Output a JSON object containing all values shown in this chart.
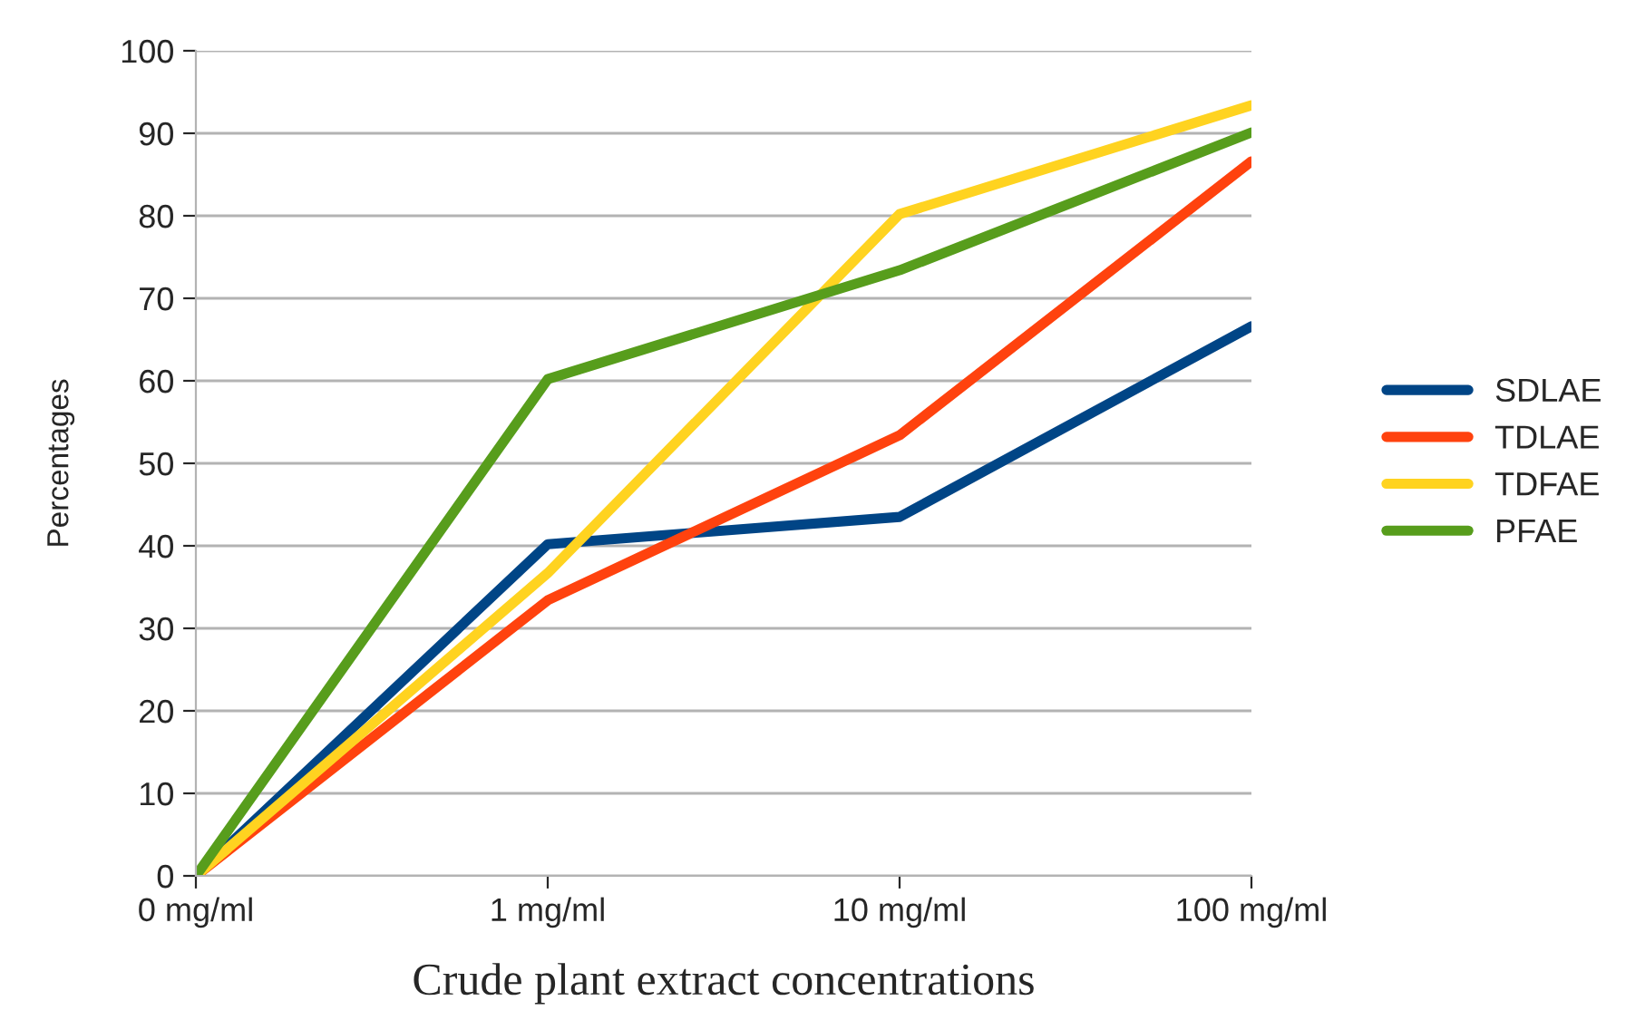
{
  "chart_data": {
    "type": "line",
    "xlabel": "Crude plant extract concentrations",
    "ylabel": "Percentages",
    "categories": [
      "0 mg/ml",
      "1 mg/ml",
      "10 mg/ml",
      "100 mg/ml"
    ],
    "series": [
      {
        "name": "SDLAE",
        "color": "#004586",
        "values": [
          0,
          40.2,
          43.5,
          66.6
        ]
      },
      {
        "name": "TDLAE",
        "color": "#ff420e",
        "values": [
          0,
          33.4,
          53.4,
          86.6
        ]
      },
      {
        "name": "TDFAE",
        "color": "#ffd320",
        "values": [
          0,
          36.7,
          80.2,
          93.4
        ]
      },
      {
        "name": "PFAE",
        "color": "#579d1c",
        "values": [
          0,
          60.2,
          73.4,
          90.1
        ]
      }
    ],
    "ylim": [
      0,
      100
    ],
    "yticks": [
      0,
      10,
      20,
      30,
      40,
      50,
      60,
      70,
      80,
      90,
      100
    ],
    "grid": "y",
    "legend": "right",
    "marker": "none",
    "line_style": "solid"
  }
}
